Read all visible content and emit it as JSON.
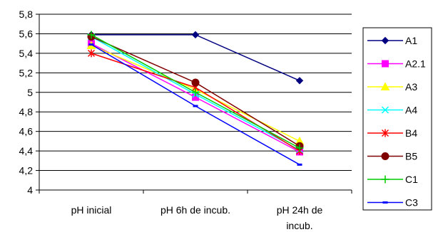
{
  "chart_data": {
    "type": "line",
    "categories": [
      "pH inicial",
      "pH 6h de incub.",
      "pH 24h de incub."
    ],
    "category_label_lines": [
      [
        "pH inicial"
      ],
      [
        "pH 6h de incub."
      ],
      [
        "pH 24h de",
        "incub."
      ]
    ],
    "ylim": [
      4,
      5.8
    ],
    "yticks": [
      "4",
      "4,2",
      "4,4",
      "4,6",
      "4,8",
      "5",
      "5,2",
      "5,4",
      "5,6",
      "5,8"
    ],
    "grid": "horizontal",
    "legend_position": "right",
    "series": [
      {
        "name": "A1",
        "values": [
          5.59,
          5.59,
          5.12
        ],
        "color": "#000080",
        "marker": "diamond"
      },
      {
        "name": "A2.1",
        "values": [
          5.5,
          4.95,
          4.39
        ],
        "color": "#FF00FF",
        "marker": "square"
      },
      {
        "name": "A3",
        "values": [
          5.48,
          5.03,
          4.5
        ],
        "color": "#FFFF00",
        "marker": "triangle"
      },
      {
        "name": "A4",
        "values": [
          5.57,
          4.98,
          4.41
        ],
        "color": "#00FFFF",
        "marker": "x"
      },
      {
        "name": "B4",
        "values": [
          5.4,
          5.05,
          4.4
        ],
        "color": "#FF0000",
        "marker": "star"
      },
      {
        "name": "B5",
        "values": [
          5.57,
          5.1,
          4.45
        ],
        "color": "#800000",
        "marker": "circle"
      },
      {
        "name": "C1",
        "values": [
          5.59,
          5.0,
          4.43
        ],
        "color": "#00CC00",
        "marker": "plus"
      },
      {
        "name": "C3",
        "values": [
          5.49,
          4.86,
          4.26
        ],
        "color": "#0000FF",
        "marker": "dash"
      }
    ]
  }
}
